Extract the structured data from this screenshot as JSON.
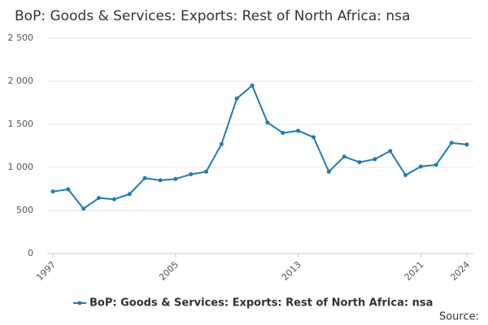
{
  "chart_data": {
    "type": "line",
    "title": "BoP: Goods & Services: Exports: Rest of North Africa: nsa",
    "source": "Source:",
    "x": [
      1997,
      1998,
      1999,
      2000,
      2001,
      2002,
      2003,
      2004,
      2005,
      2006,
      2007,
      2008,
      2009,
      2010,
      2011,
      2012,
      2013,
      2014,
      2015,
      2016,
      2017,
      2018,
      2019,
      2020,
      2021,
      2022,
      2023,
      2024
    ],
    "series": [
      {
        "name": "BoP: Goods & Services: Exports: Rest of North Africa: nsa",
        "color": "#1f7bb6",
        "values": [
          720,
          745,
          520,
          645,
          630,
          690,
          875,
          850,
          865,
          920,
          950,
          1270,
          1800,
          1950,
          1520,
          1400,
          1425,
          1350,
          950,
          1125,
          1060,
          1095,
          1190,
          910,
          1010,
          1030,
          1285,
          1265
        ]
      }
    ],
    "xlim": [
      1997,
      2024
    ],
    "xticks": [
      1997,
      2005,
      2013,
      2021,
      2024
    ],
    "ylim": [
      0,
      2500
    ],
    "yticks": [
      0,
      500,
      {
        "value": 1000,
        "label": "1 000"
      },
      {
        "value": 1500,
        "label": "1 500"
      },
      {
        "value": 2000,
        "label": "2 000"
      },
      {
        "value": 2500,
        "label": "2 500"
      }
    ],
    "grid": true,
    "legend": "bottom"
  }
}
